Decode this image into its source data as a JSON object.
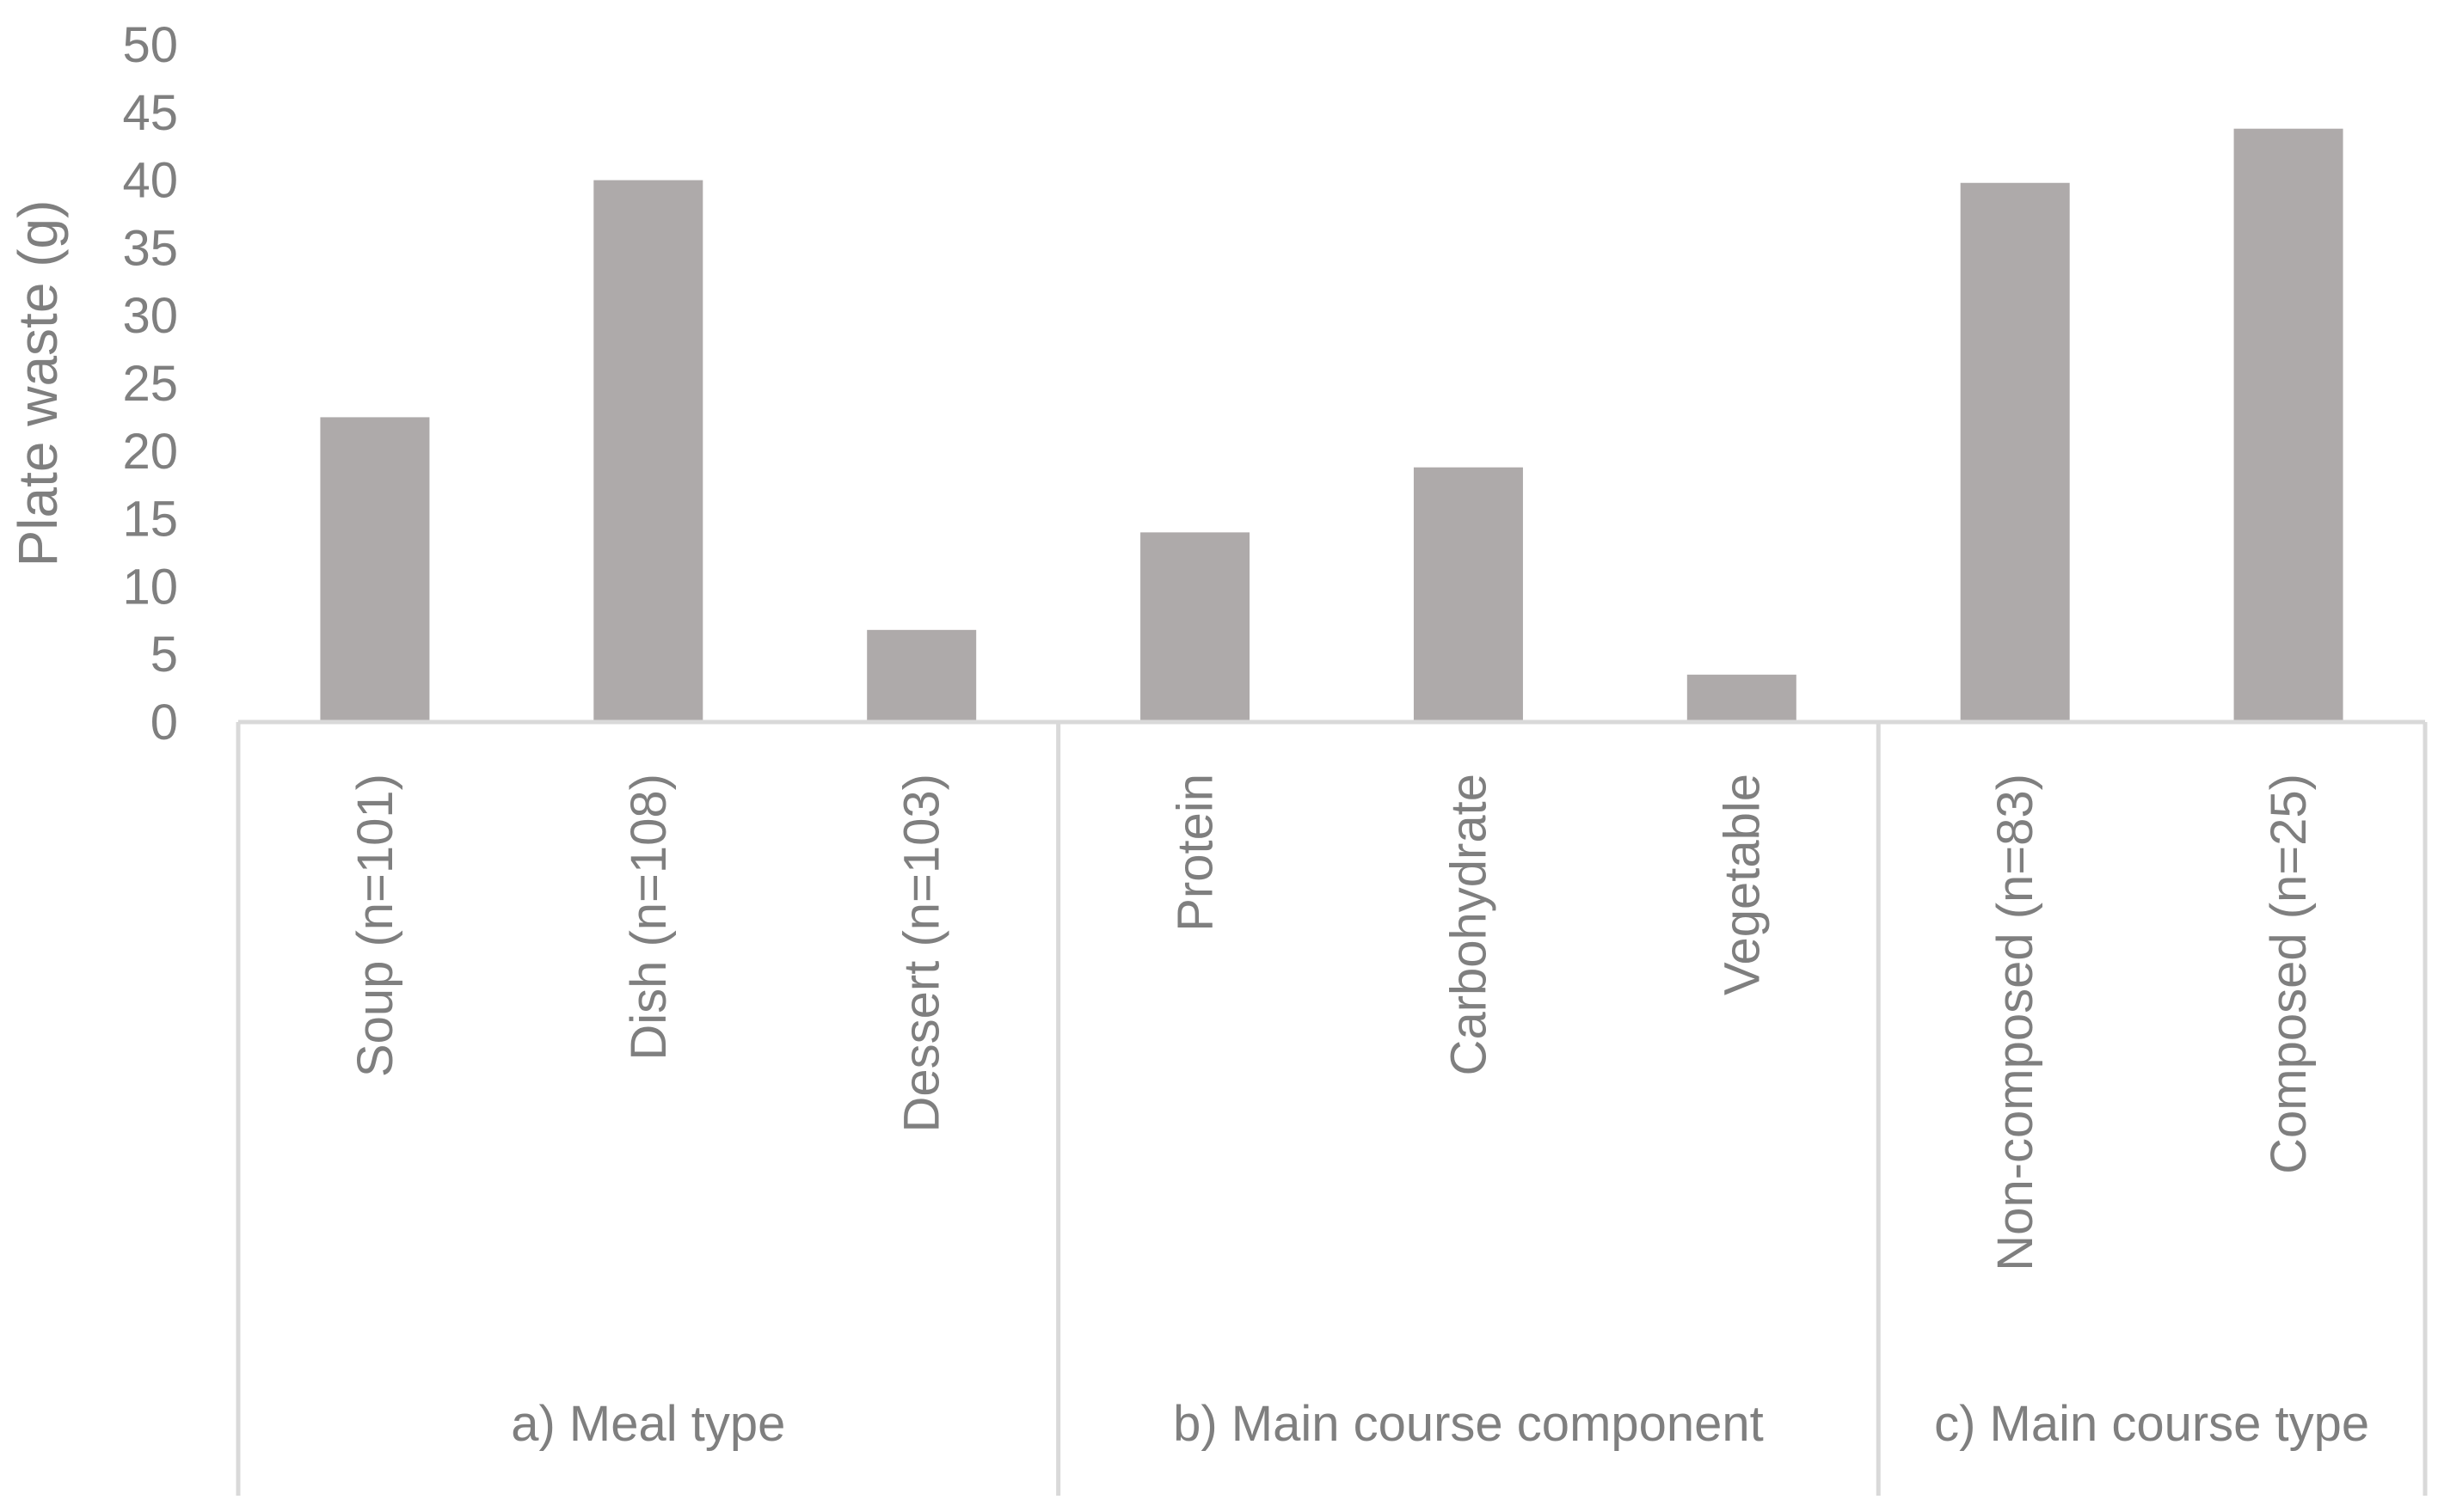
{
  "chart_data": {
    "type": "bar",
    "title": "",
    "xlabel": "",
    "ylabel": "Plate waste (g)",
    "ylim": [
      0,
      50
    ],
    "yticks": [
      0,
      5,
      10,
      15,
      20,
      25,
      30,
      35,
      40,
      45,
      50
    ],
    "grid": false,
    "legend": "none",
    "groups": [
      {
        "label": "a) Meal type",
        "categories": [
          "Soup (n=101)",
          "Dish (n=108)",
          "Dessert (n=103)"
        ],
        "values": [
          22.5,
          40.0,
          6.8
        ]
      },
      {
        "label": "b) Main course component",
        "categories": [
          "Protein",
          "Carbohydrate",
          "Vegetable"
        ],
        "values": [
          14.0,
          18.8,
          3.5
        ]
      },
      {
        "label": "c) Main course type",
        "categories": [
          "Non-composed (n=83)",
          "Composed  (n=25)"
        ],
        "values": [
          39.8,
          43.8
        ]
      }
    ]
  },
  "colors": {
    "bar": "#aeaaaa",
    "axis_line": "#d9d9d9",
    "text": "#7f7f7f"
  }
}
